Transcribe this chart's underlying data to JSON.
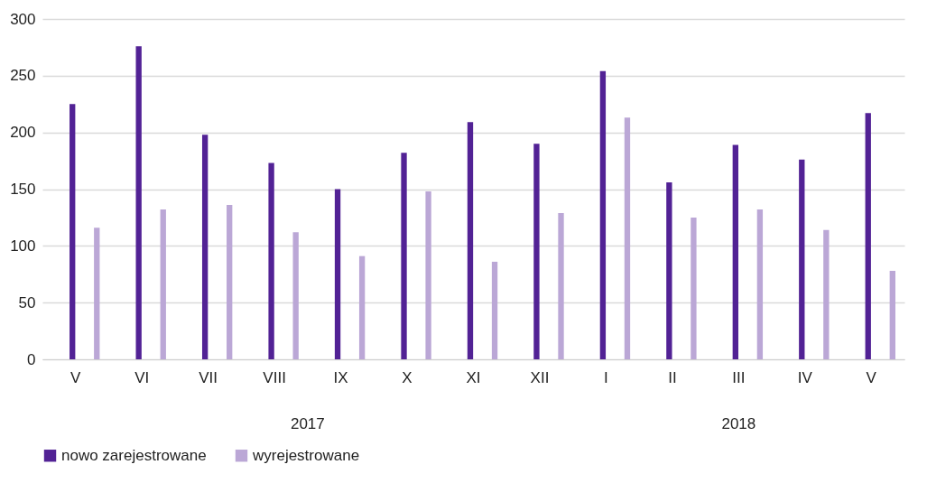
{
  "chart_data": {
    "type": "bar",
    "categories": [
      "V",
      "VI",
      "VII",
      "VIII",
      "IX",
      "X",
      "XI",
      "XII",
      "I",
      "II",
      "III",
      "IV",
      "V"
    ],
    "series": [
      {
        "name": "nowo zarejestrowane",
        "color": "#522295",
        "values": [
          225,
          276,
          198,
          173,
          150,
          182,
          209,
          190,
          254,
          156,
          189,
          176,
          217
        ]
      },
      {
        "name": "wyrejestrowane",
        "color": "#bba7d6",
        "values": [
          116,
          132,
          136,
          112,
          91,
          148,
          86,
          129,
          213,
          125,
          132,
          114,
          78
        ]
      }
    ],
    "ylim": [
      0,
      300
    ],
    "yticks": [
      0,
      50,
      100,
      150,
      200,
      250,
      300
    ],
    "grid": "y",
    "legend": "bottom",
    "annotations": [
      "2017",
      "2018"
    ]
  }
}
